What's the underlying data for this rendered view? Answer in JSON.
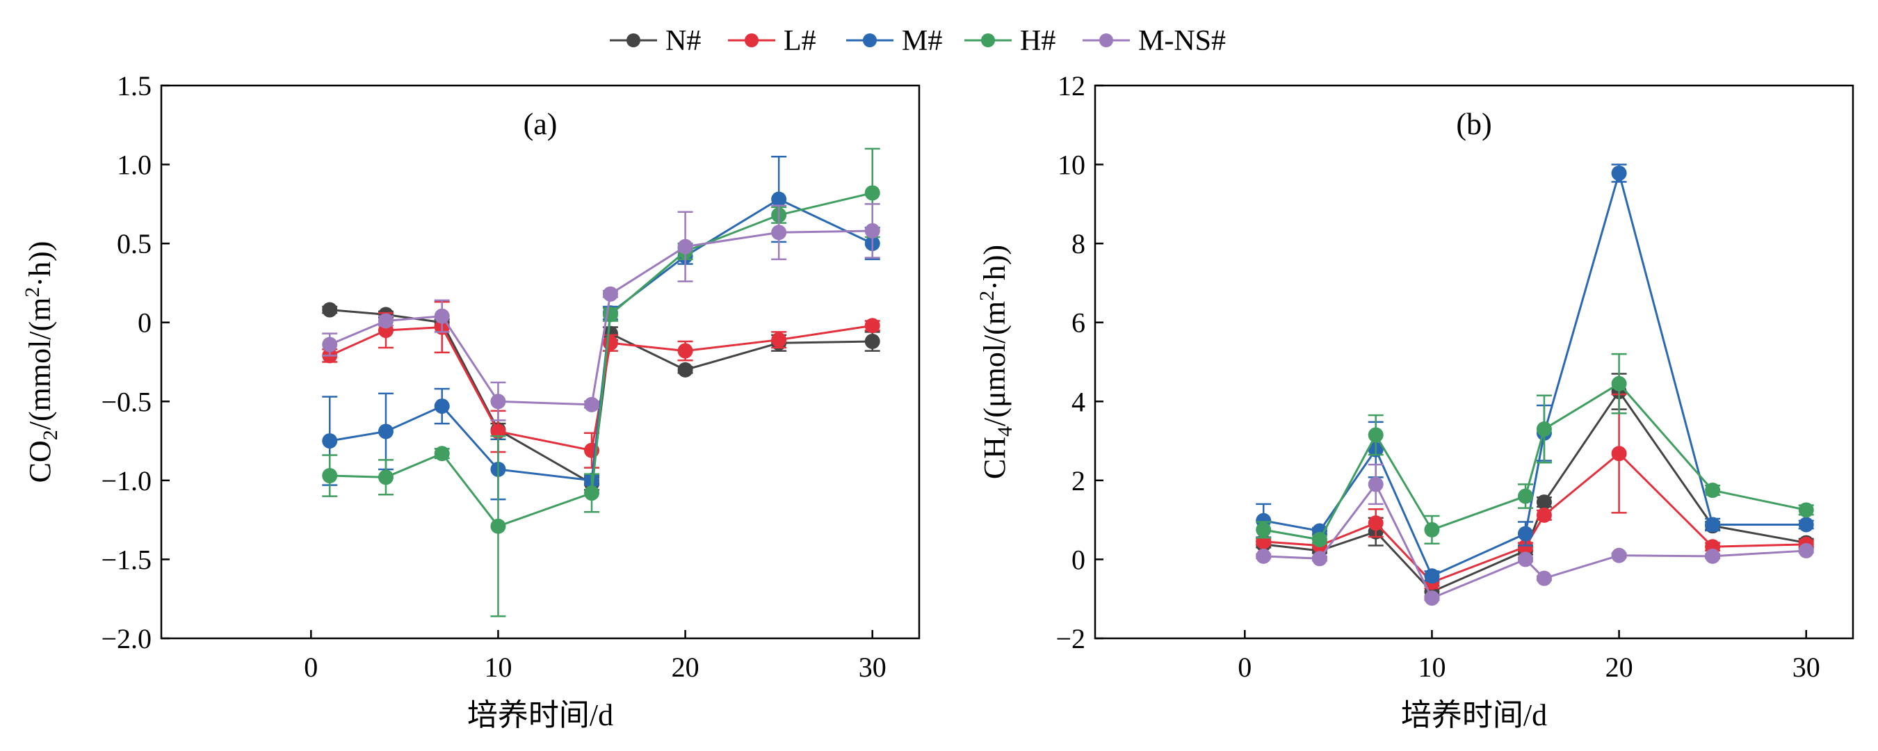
{
  "chart_data": [
    {
      "type": "line",
      "panel_tag": "(a)",
      "xlabel": "培养时间/d",
      "ylabel_main": "CO",
      "ylabel_sub": "2",
      "ylabel_rest": "/(mmol/(m",
      "ylabel_sup": "2",
      "ylabel_end": "·h))",
      "xlim": [
        -8,
        32.5
      ],
      "ylim": [
        -2.0,
        1.5
      ],
      "xticks": [
        0,
        10,
        20,
        30
      ],
      "xtick_labels": [
        "0",
        "10",
        "20",
        "30"
      ],
      "yticks": [
        -2.0,
        -1.5,
        -1.0,
        -0.5,
        0,
        0.5,
        1.0,
        1.5
      ],
      "ytick_labels": [
        "−2.0",
        "−1.5",
        "−1.0",
        "−0.5",
        "0",
        "0.5",
        "1.0",
        "1.5"
      ],
      "grid": false,
      "x": [
        1,
        4,
        7,
        10,
        15,
        16,
        20,
        25,
        30
      ],
      "series": [
        {
          "name": "N#",
          "color": "#444444",
          "values": [
            0.08,
            0.05,
            0.0,
            -0.68,
            -1.02,
            -0.07,
            -0.3,
            -0.13,
            -0.12
          ],
          "errors": [
            0.02,
            0.02,
            0.02,
            0.04,
            0.04,
            0.04,
            0.02,
            0.05,
            0.06
          ]
        },
        {
          "name": "L#",
          "color": "#e3303d",
          "values": [
            -0.21,
            -0.05,
            -0.03,
            -0.69,
            -0.81,
            -0.13,
            -0.18,
            -0.11,
            -0.02
          ],
          "errors": [
            0.04,
            0.11,
            0.16,
            0.13,
            0.11,
            0.05,
            0.06,
            0.05,
            0.03
          ]
        },
        {
          "name": "M#",
          "color": "#2a68b2",
          "values": [
            -0.75,
            -0.69,
            -0.53,
            -0.93,
            -1.0,
            0.06,
            0.42,
            0.78,
            0.5
          ],
          "errors": [
            0.28,
            0.24,
            0.11,
            0.19,
            0.03,
            0.04,
            0.05,
            0.27,
            0.1
          ]
        },
        {
          "name": "H#",
          "color": "#3f9e60",
          "values": [
            -0.97,
            -0.98,
            -0.83,
            -1.29,
            -1.08,
            0.05,
            0.45,
            0.68,
            0.82
          ],
          "errors": [
            0.13,
            0.11,
            0.03,
            0.57,
            0.12,
            0.04,
            0.05,
            0.05,
            0.28
          ]
        },
        {
          "name": "M-NS#",
          "color": "#9c7bbd",
          "values": [
            -0.14,
            0.01,
            0.04,
            -0.5,
            -0.52,
            0.18,
            0.48,
            0.57,
            0.58
          ],
          "errors": [
            0.07,
            0.03,
            0.1,
            0.12,
            0.02,
            0.02,
            0.22,
            0.17,
            0.17
          ]
        }
      ]
    },
    {
      "type": "line",
      "panel_tag": "(b)",
      "xlabel": "培养时间/d",
      "ylabel_main": "CH",
      "ylabel_sub": "4",
      "ylabel_rest": "/(μmol/(m",
      "ylabel_sup": "2",
      "ylabel_end": "·h))",
      "xlim": [
        -8,
        32.5
      ],
      "ylim": [
        -2,
        12
      ],
      "xticks": [
        0,
        10,
        20,
        30
      ],
      "xtick_labels": [
        "0",
        "10",
        "20",
        "30"
      ],
      "yticks": [
        -2,
        0,
        2,
        4,
        6,
        8,
        10,
        12
      ],
      "ytick_labels": [
        "−2",
        "0",
        "2",
        "4",
        "6",
        "8",
        "10",
        "12"
      ],
      "grid": false,
      "x": [
        1,
        4,
        7,
        10,
        15,
        16,
        20,
        25,
        30
      ],
      "series": [
        {
          "name": "N#",
          "color": "#444444",
          "values": [
            0.38,
            0.22,
            0.7,
            -0.82,
            0.22,
            1.45,
            4.25,
            0.85,
            0.42
          ],
          "errors": [
            0.08,
            0.06,
            0.35,
            0.15,
            0.1,
            0.12,
            0.45,
            0.1,
            0.1
          ]
        },
        {
          "name": "L#",
          "color": "#e3303d",
          "values": [
            0.45,
            0.35,
            0.92,
            -0.58,
            0.32,
            1.12,
            2.68,
            0.32,
            0.38
          ],
          "errors": [
            0.08,
            0.06,
            0.35,
            0.15,
            0.1,
            0.12,
            1.5,
            0.1,
            0.1
          ]
        },
        {
          "name": "M#",
          "color": "#2a68b2",
          "values": [
            0.98,
            0.72,
            2.78,
            -0.42,
            0.65,
            3.2,
            9.78,
            0.88,
            0.88
          ],
          "errors": [
            0.42,
            0.08,
            0.7,
            0.12,
            0.3,
            0.7,
            0.22,
            0.15,
            0.1
          ]
        },
        {
          "name": "H#",
          "color": "#3f9e60",
          "values": [
            0.75,
            0.5,
            3.15,
            0.75,
            1.6,
            3.3,
            4.45,
            1.75,
            1.25
          ],
          "errors": [
            0.2,
            0.1,
            0.5,
            0.35,
            0.3,
            0.85,
            0.75,
            0.12,
            0.12
          ]
        },
        {
          "name": "M-NS#",
          "color": "#9c7bbd",
          "values": [
            0.08,
            0.02,
            1.9,
            -0.98,
            0.0,
            -0.48,
            0.1,
            0.08,
            0.22
          ],
          "errors": [
            0.05,
            0.05,
            0.5,
            0.05,
            0.05,
            0.05,
            0.05,
            0.05,
            0.05
          ]
        }
      ]
    }
  ]
}
